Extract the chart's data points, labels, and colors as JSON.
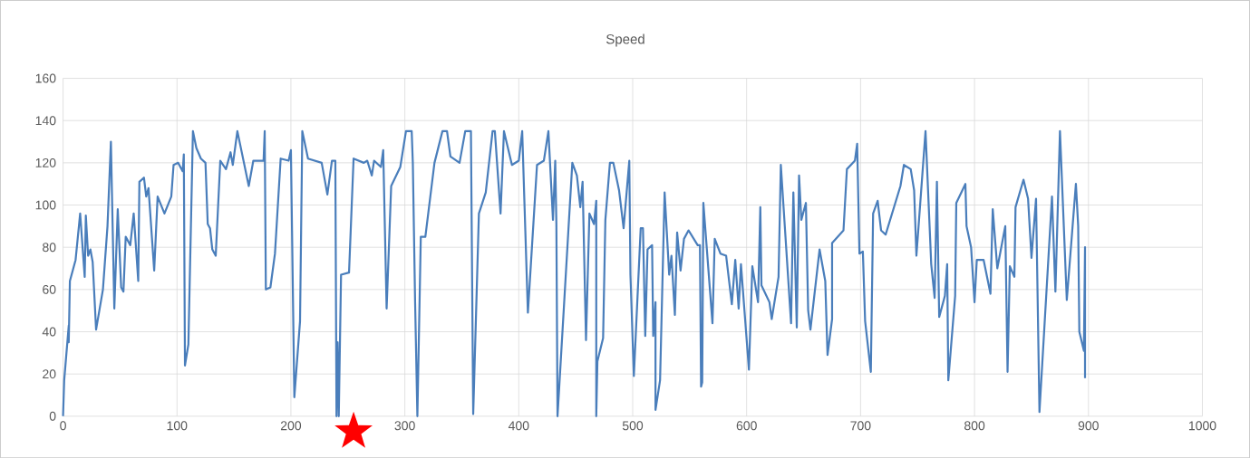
{
  "chart_data": {
    "type": "line",
    "title": "Speed",
    "color": "#4a7ebb",
    "grid": true,
    "xlim": [
      0,
      1000
    ],
    "ylim": [
      0,
      160
    ],
    "xticks": [
      0,
      100,
      200,
      300,
      400,
      500,
      600,
      700,
      800,
      900,
      1000
    ],
    "yticks": [
      0,
      20,
      40,
      60,
      80,
      100,
      120,
      140,
      160
    ],
    "x": [
      0,
      1,
      5,
      5,
      6,
      11,
      15,
      19,
      20,
      22,
      24,
      26,
      29,
      35,
      39,
      42,
      45,
      48,
      51,
      53,
      55,
      59,
      62,
      66,
      67,
      71,
      73,
      75,
      80,
      83,
      89,
      95,
      97,
      101,
      105,
      106,
      107,
      110,
      114,
      117,
      121,
      125,
      127,
      129,
      131,
      134,
      138,
      143,
      147,
      149,
      153,
      163,
      167,
      176,
      177,
      178,
      182,
      186,
      191,
      198,
      200,
      203,
      208,
      210,
      215,
      227,
      232,
      236,
      239,
      240,
      241,
      242,
      244,
      251,
      255,
      264,
      267,
      271,
      273,
      279,
      281,
      284,
      288,
      296,
      301,
      306,
      307,
      309,
      311,
      314,
      318,
      326,
      333,
      337,
      340,
      348,
      353,
      358,
      360,
      365,
      371,
      377,
      379,
      384,
      387,
      394,
      400,
      403,
      408,
      416,
      422,
      426,
      430,
      432,
      433,
      434,
      447,
      451,
      454,
      456,
      459,
      462,
      466,
      468,
      468,
      469,
      474,
      476,
      480,
      483,
      488,
      492,
      497,
      498,
      501,
      507,
      509,
      511,
      513,
      517,
      518,
      520,
      520,
      524,
      528,
      532,
      534,
      537,
      539,
      542,
      545,
      549,
      557,
      559,
      560,
      561,
      562,
      570,
      572,
      577,
      582,
      587,
      590,
      593,
      595,
      602,
      605,
      610,
      612,
      613,
      620,
      622,
      628,
      630,
      639,
      641,
      644,
      646,
      648,
      652,
      654,
      656,
      664,
      669,
      671,
      675,
      675,
      685,
      688,
      695,
      697,
      699,
      702,
      704,
      709,
      711,
      715,
      718,
      722,
      735,
      738,
      744,
      747,
      749,
      757,
      762,
      765,
      767,
      769,
      774,
      776,
      777,
      783,
      784,
      792,
      793,
      797,
      800,
      802,
      808,
      814,
      816,
      820,
      827,
      829,
      831,
      835,
      836,
      843,
      847,
      850,
      854,
      857,
      868,
      871,
      875,
      881,
      889,
      891,
      892,
      896,
      897,
      897
    ],
    "values": [
      0,
      17,
      43,
      35,
      64,
      74,
      96,
      66,
      95,
      76,
      79,
      73,
      41,
      60,
      90,
      130,
      51,
      98,
      61,
      59,
      85,
      81,
      96,
      64,
      111,
      113,
      104,
      108,
      69,
      104,
      96,
      104,
      119,
      120,
      116,
      124,
      24,
      34,
      135,
      127,
      122,
      120,
      91,
      89,
      79,
      76,
      121,
      117,
      125,
      119,
      135,
      109,
      121,
      121,
      135,
      60,
      61,
      77,
      122,
      121,
      126,
      9,
      45,
      135,
      122,
      120,
      105,
      121,
      121,
      0,
      35,
      0,
      67,
      68,
      122,
      120,
      121,
      114,
      121,
      118,
      126,
      51,
      109,
      118,
      135,
      135,
      120,
      54,
      0,
      85,
      85,
      120,
      135,
      135,
      123,
      120,
      135,
      135,
      1,
      96,
      106,
      135,
      135,
      96,
      135,
      119,
      121,
      135,
      49,
      119,
      121,
      135,
      93,
      121,
      91,
      0,
      120,
      114,
      99,
      111,
      36,
      96,
      91,
      102,
      0,
      26,
      37,
      93,
      120,
      120,
      107,
      89,
      121,
      67,
      19,
      89,
      89,
      38,
      79,
      81,
      38,
      54,
      3,
      17,
      106,
      67,
      76,
      48,
      87,
      69,
      84,
      88,
      81,
      81,
      14,
      16,
      101,
      44,
      84,
      77,
      76,
      53,
      74,
      51,
      72,
      22,
      71,
      54,
      99,
      62,
      54,
      46,
      66,
      119,
      44,
      106,
      42,
      114,
      93,
      101,
      50,
      41,
      79,
      64,
      29,
      46,
      82,
      88,
      117,
      121,
      129,
      77,
      78,
      45,
      21,
      96,
      102,
      88,
      86,
      109,
      119,
      117,
      107,
      76,
      135,
      72,
      56,
      111,
      47,
      57,
      72,
      17,
      57,
      101,
      110,
      90,
      80,
      54,
      74,
      74,
      58,
      98,
      70,
      90,
      21,
      71,
      66,
      99,
      112,
      103,
      75,
      103,
      2,
      104,
      59,
      135,
      55,
      110,
      90,
      40,
      31,
      80,
      18
    ]
  }
}
